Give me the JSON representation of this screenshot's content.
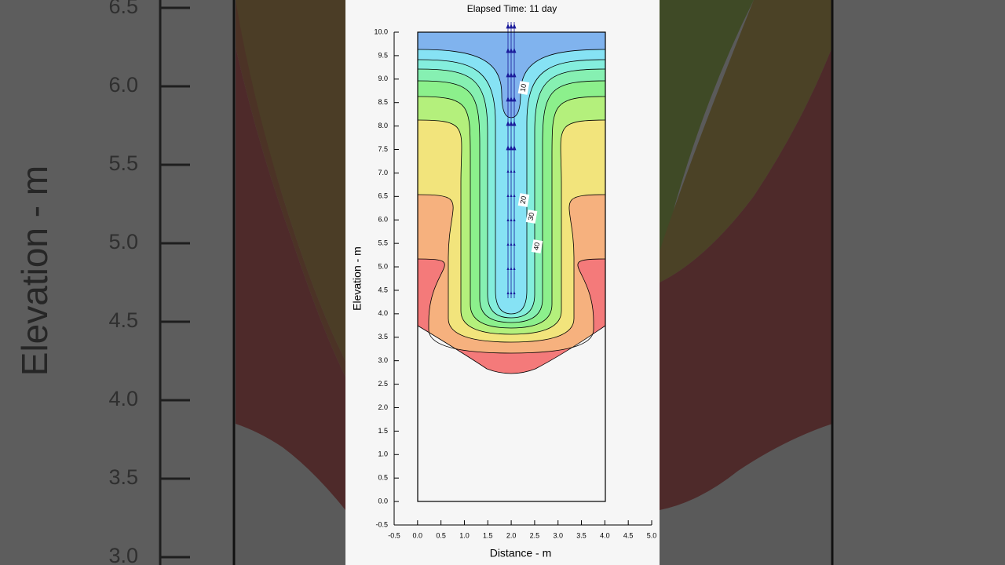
{
  "chart_data": {
    "type": "contour",
    "title": "Elapsed Time: 11 day",
    "xlabel": "Distance - m",
    "ylabel": "Elevation - m",
    "xlim": [
      -0.5,
      5.0
    ],
    "ylim": [
      -0.5,
      10.0
    ],
    "xticks": [
      -0.5,
      {
        "value": 0,
        "label": "0.0"
      },
      0.5,
      {
        "value": 1,
        "label": "1.0"
      },
      1.5,
      {
        "value": 2,
        "label": "2.0"
      },
      2.5,
      {
        "value": 3,
        "label": "3.0"
      },
      3.5,
      {
        "value": 4,
        "label": "4.0"
      },
      4.5,
      {
        "value": 5,
        "label": "5.0"
      }
    ],
    "yticks": [
      -0.5,
      {
        "value": 0,
        "label": "0.0"
      },
      0.5,
      {
        "value": 1,
        "label": "1.0"
      },
      1.5,
      {
        "value": 2,
        "label": "2.0"
      },
      2.5,
      {
        "value": 3,
        "label": "3.0"
      },
      3.5,
      {
        "value": 4,
        "label": "4.0"
      },
      4.5,
      {
        "value": 5,
        "label": "5.0"
      },
      5.5,
      {
        "value": 6,
        "label": "6.0"
      },
      6.5,
      {
        "value": 7,
        "label": "7.0"
      },
      7.5,
      {
        "value": 8,
        "label": "8.0"
      },
      8.5,
      {
        "value": 9,
        "label": "9.0"
      },
      9.5,
      {
        "value": 10,
        "label": "10.0"
      }
    ],
    "contour_labels": [
      10,
      20,
      30,
      40
    ]
  },
  "background_zoom": {
    "ylabel": "Elevation - m",
    "ylim": [
      2.95,
      6.55
    ],
    "yticks": [
      {
        "value": 3,
        "label": "3.0"
      },
      3.5,
      {
        "value": 4,
        "label": "4.0"
      },
      4.5,
      {
        "value": 5,
        "label": "5.0"
      },
      5.5,
      {
        "value": 6,
        "label": "6.0"
      },
      6.5
    ]
  }
}
